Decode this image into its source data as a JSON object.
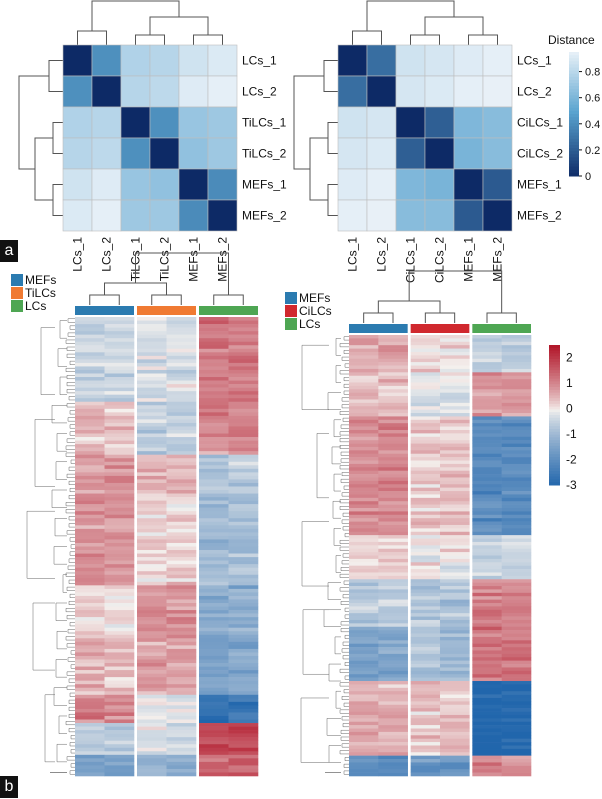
{
  "panel_labels": [
    "a",
    "b"
  ],
  "chart_data": [
    {
      "type": "heatmap",
      "rows": [
        "LCs_1",
        "LCs_2",
        "TiLCs_1",
        "TiLCs_2",
        "MEFs_1",
        "MEFs_2"
      ],
      "columns": [
        "LCs_1",
        "LCs_2",
        "TiLCs_1",
        "TiLCs_2",
        "MEFs_1",
        "MEFs_2"
      ],
      "values": [
        [
          0,
          0.42,
          0.78,
          0.8,
          0.88,
          0.92
        ],
        [
          0.42,
          0,
          0.8,
          0.82,
          0.93,
          0.95
        ],
        [
          0.78,
          0.8,
          0,
          0.42,
          0.7,
          0.72
        ],
        [
          0.8,
          0.82,
          0.42,
          0,
          0.68,
          0.72
        ],
        [
          0.88,
          0.93,
          0.7,
          0.68,
          0,
          0.4
        ],
        [
          0.92,
          0.95,
          0.72,
          0.72,
          0.4,
          0
        ]
      ],
      "legend": {
        "title": "",
        "range": [
          0,
          1
        ]
      }
    },
    {
      "type": "heatmap",
      "rows": [
        "LCs_1",
        "LCs_2",
        "CiLCs_1",
        "CiLCs_2",
        "MEFs_1",
        "MEFs_2"
      ],
      "columns": [
        "LCs_1",
        "LCs_2",
        "CiLCs_1",
        "CiLCs_2",
        "MEFs_1",
        "MEFs_2"
      ],
      "values": [
        [
          0,
          0.28,
          0.88,
          0.9,
          0.93,
          0.95
        ],
        [
          0.28,
          0,
          0.9,
          0.92,
          0.95,
          0.96
        ],
        [
          0.88,
          0.9,
          0,
          0.22,
          0.62,
          0.65
        ],
        [
          0.9,
          0.92,
          0.22,
          0,
          0.6,
          0.65
        ],
        [
          0.93,
          0.95,
          0.62,
          0.6,
          0,
          0.2
        ],
        [
          0.95,
          0.96,
          0.65,
          0.65,
          0.2,
          0
        ]
      ],
      "legend": {
        "title": "Distance",
        "ticks": [
          0,
          0.2,
          0.4,
          0.6,
          0.8
        ],
        "range": [
          0,
          0.95
        ]
      }
    },
    {
      "type": "heatmap",
      "groups": [
        "MEFs",
        "TiLCs",
        "LCs"
      ],
      "group_colors": [
        "#2b7bb0",
        "#f07a32",
        "#4ea653"
      ],
      "legend_entries": [
        "MEFs",
        "TiLCs",
        "LCs"
      ],
      "range": [
        -3,
        2.5
      ]
    },
    {
      "type": "heatmap",
      "groups": [
        "MEFs",
        "CiLCs",
        "LCs"
      ],
      "group_colors": [
        "#2b7bb0",
        "#d0282e",
        "#4ea653"
      ],
      "legend_entries": [
        "MEFs",
        "CiLCs",
        "LCs"
      ],
      "legend": {
        "ticks": [
          2,
          1,
          0,
          -1,
          -2,
          -3
        ],
        "range": [
          -3,
          2.5
        ]
      }
    }
  ],
  "colors": {
    "dist_low": "#0d2a66",
    "dist_mid": "#5aa3cf",
    "dist_high": "#f4f7fb",
    "expr_low": "#2166ac",
    "expr_mid": "#f4f1ee",
    "expr_high": "#b2182b"
  }
}
